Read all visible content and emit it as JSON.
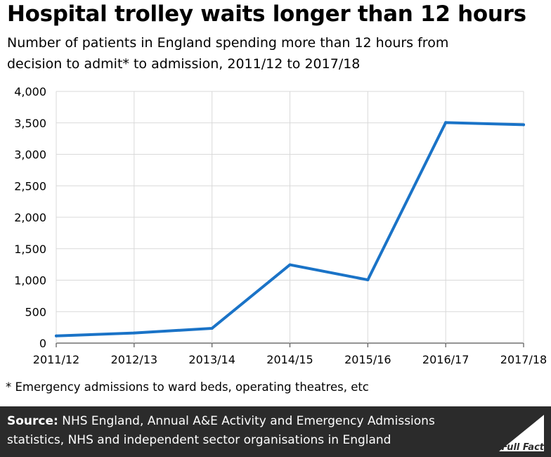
{
  "title": "Hospital trolley waits longer than 12 hours",
  "subtitle": "Number of patients in England spending more than 12 hours from\ndecision to admit* to admission, 2011/12 to 2017/18",
  "footnote": "* Emergency admissions to ward beds, operating theatres, etc",
  "source": {
    "label": "Source:",
    "text": " NHS England, Annual A&E Activity and Emergency Admissions statistics, NHS and independent sector organisations in England"
  },
  "logo": {
    "text": "Full Fact",
    "icon": "full-fact-logo-icon"
  },
  "colors": {
    "line": "#1a73c7",
    "grid": "#d9d9d9",
    "axis": "#555555",
    "footer_bg": "#2b2b2b"
  },
  "chart_data": {
    "type": "line",
    "categories": [
      "2011/12",
      "2012/13",
      "2013/14",
      "2014/15",
      "2015/16",
      "2016/17",
      "2017/18"
    ],
    "series": [
      {
        "values": [
          115,
          160,
          235,
          1245,
          1005,
          3505,
          3470
        ]
      }
    ],
    "ylim": [
      0,
      4000
    ],
    "yticks": [
      0,
      500,
      1000,
      1500,
      2000,
      2500,
      3000,
      3500,
      4000
    ],
    "ytick_labels": [
      "0",
      "500",
      "1,000",
      "1,500",
      "2,000",
      "2,500",
      "3,000",
      "3,500",
      "4,000"
    ],
    "grid": true,
    "legend": "none"
  }
}
